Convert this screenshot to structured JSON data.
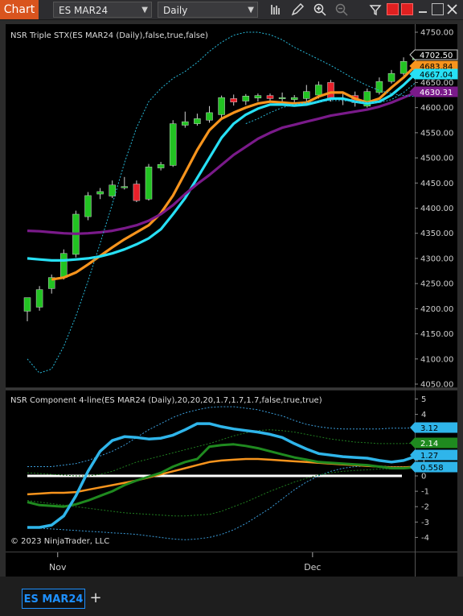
{
  "toolbar": {
    "chart_label": "Chart",
    "instrument": "ES MAR24",
    "interval": "Daily",
    "icons": [
      "bar-type-icon",
      "pencil-icon",
      "zoom-in-icon",
      "zoom-out-icon",
      "properties-icon"
    ]
  },
  "tabs": {
    "active": "ES MAR24",
    "add_label": "+"
  },
  "copyright": "© 2023 NinjaTrader, LLC",
  "chart_data": [
    {
      "type": "candlestick",
      "indicator_label": "NSR Triple STX(ES MAR24 (Daily),false,true,false)",
      "ylim": [
        4040,
        4760
      ],
      "yticks": [
        4050,
        4100,
        4150,
        4200,
        4250,
        4300,
        4350,
        4400,
        4450,
        4500,
        4550,
        4600,
        4650,
        4700,
        4750
      ],
      "xticks": [
        {
          "label": "Nov",
          "index": 2.5
        },
        {
          "label": "Dec",
          "index": 23.5
        }
      ],
      "candles": [
        {
          "o": 4195,
          "h": 4218,
          "l": 4175,
          "c": 4222
        },
        {
          "o": 4203,
          "h": 4245,
          "l": 4196,
          "c": 4238
        },
        {
          "o": 4240,
          "h": 4268,
          "l": 4230,
          "c": 4262
        },
        {
          "o": 4262,
          "h": 4318,
          "l": 4258,
          "c": 4310
        },
        {
          "o": 4308,
          "h": 4395,
          "l": 4302,
          "c": 4388
        },
        {
          "o": 4383,
          "h": 4432,
          "l": 4376,
          "c": 4425
        },
        {
          "o": 4428,
          "h": 4440,
          "l": 4418,
          "c": 4433
        },
        {
          "o": 4424,
          "h": 4455,
          "l": 4420,
          "c": 4446
        },
        {
          "o": 4441,
          "h": 4462,
          "l": 4437,
          "c": 4443
        },
        {
          "o": 4448,
          "h": 4455,
          "l": 4412,
          "c": 4415
        },
        {
          "o": 4418,
          "h": 4488,
          "l": 4415,
          "c": 4482
        },
        {
          "o": 4480,
          "h": 4492,
          "l": 4475,
          "c": 4487
        },
        {
          "o": 4485,
          "h": 4575,
          "l": 4482,
          "c": 4568
        },
        {
          "o": 4565,
          "h": 4592,
          "l": 4560,
          "c": 4572
        },
        {
          "o": 4568,
          "h": 4588,
          "l": 4564,
          "c": 4578
        },
        {
          "o": 4575,
          "h": 4603,
          "l": 4570,
          "c": 4590
        },
        {
          "o": 4586,
          "h": 4624,
          "l": 4580,
          "c": 4620
        },
        {
          "o": 4618,
          "h": 4626,
          "l": 4604,
          "c": 4611
        },
        {
          "o": 4613,
          "h": 4627,
          "l": 4605,
          "c": 4623
        },
        {
          "o": 4619,
          "h": 4628,
          "l": 4612,
          "c": 4624
        },
        {
          "o": 4624,
          "h": 4628,
          "l": 4612,
          "c": 4618
        },
        {
          "o": 4618,
          "h": 4630,
          "l": 4608,
          "c": 4620
        },
        {
          "o": 4616,
          "h": 4625,
          "l": 4608,
          "c": 4620
        },
        {
          "o": 4618,
          "h": 4645,
          "l": 4605,
          "c": 4632
        },
        {
          "o": 4625,
          "h": 4652,
          "l": 4618,
          "c": 4645
        },
        {
          "o": 4650,
          "h": 4655,
          "l": 4612,
          "c": 4616
        },
        {
          "o": 4617,
          "h": 4630,
          "l": 4605,
          "c": 4618
        },
        {
          "o": 4624,
          "h": 4632,
          "l": 4602,
          "c": 4610
        },
        {
          "o": 4603,
          "h": 4638,
          "l": 4600,
          "c": 4632
        },
        {
          "o": 4630,
          "h": 4660,
          "l": 4626,
          "c": 4652
        },
        {
          "o": 4652,
          "h": 4675,
          "l": 4648,
          "c": 4668
        },
        {
          "o": 4668,
          "h": 4700,
          "l": 4664,
          "c": 4692
        },
        {
          "o": 4695,
          "h": 4708,
          "l": 4690,
          "c": 4702
        }
      ],
      "series": [
        {
          "color": "#f7941d",
          "values": [
            null,
            null,
            4258,
            4262,
            4272,
            4288,
            4305,
            4322,
            4338,
            4352,
            4366,
            4390,
            4425,
            4470,
            4516,
            4555,
            4578,
            4590,
            4600,
            4608,
            4612,
            4610,
            4608,
            4610,
            4622,
            4630,
            4630,
            4618,
            4610,
            4618,
            4640,
            4660,
            4684
          ]
        },
        {
          "color": "#27e0f5",
          "values": [
            4300,
            4298,
            4296,
            4296,
            4298,
            4300,
            4304,
            4310,
            4318,
            4328,
            4340,
            4358,
            4388,
            4420,
            4460,
            4500,
            4540,
            4568,
            4586,
            4598,
            4606,
            4606,
            4604,
            4606,
            4612,
            4618,
            4618,
            4612,
            4608,
            4612,
            4625,
            4645,
            4668
          ]
        },
        {
          "color": "#7a1a8a",
          "values": [
            4355,
            4354,
            4352,
            4350,
            4349,
            4350,
            4352,
            4355,
            4360,
            4366,
            4375,
            4388,
            4406,
            4428,
            4448,
            4466,
            4486,
            4506,
            4522,
            4538,
            4550,
            4560,
            4566,
            4572,
            4578,
            4584,
            4588,
            4592,
            4596,
            4602,
            4610,
            4620,
            4630
          ]
        },
        {
          "color": "#27b8d8",
          "dashed": true,
          "values": [
            4100,
            4072,
            4080,
            4125,
            4185,
            4255,
            4330,
            4408,
            4490,
            4560,
            4612,
            4638,
            4658,
            4672,
            4690,
            4712,
            4730,
            4744,
            4750,
            4750,
            4745,
            4735,
            4720,
            4708,
            4696,
            4684,
            4670,
            4656,
            4644,
            4634,
            4628,
            4624,
            4622
          ]
        },
        {
          "color": "#27b8d8",
          "dashed": true,
          "values": [
            null,
            null,
            null,
            null,
            null,
            null,
            null,
            null,
            null,
            null,
            null,
            null,
            null,
            null,
            null,
            null,
            null,
            null,
            4568,
            4578,
            4590,
            4600,
            4606,
            4610,
            4612,
            4614,
            4614,
            4612,
            4610,
            4610,
            4616,
            4630,
            4650
          ]
        }
      ],
      "price_flags": [
        {
          "value": "4702.50",
          "bg": "#000000",
          "fg": "#ffffff"
        },
        {
          "value": "4683.84",
          "bg": "#f7941d",
          "fg": "#000000"
        },
        {
          "value": "4667.04",
          "bg": "#27e0f5",
          "fg": "#000000"
        },
        {
          "value": "4630.31",
          "bg": "#7a1a8a",
          "fg": "#ffffff"
        }
      ]
    },
    {
      "type": "line",
      "indicator_label": "NSR Component 4-line(ES MAR24 (Daily),20,20,20,1.7,1.7,1.7,false,true,true)",
      "ylim": [
        -4.5,
        5.2
      ],
      "yticks": [
        5,
        4,
        3,
        2,
        1,
        0,
        -1,
        -2,
        -3,
        -4
      ],
      "zero_line": 0,
      "series": [
        {
          "color": "#2fb5ea",
          "width": 3.5,
          "values": [
            -3.35,
            -3.35,
            -3.2,
            -2.6,
            -1.3,
            0.3,
            1.6,
            2.3,
            2.55,
            2.5,
            2.4,
            2.45,
            2.65,
            3.0,
            3.4,
            3.4,
            3.2,
            3.05,
            2.95,
            2.85,
            2.7,
            2.5,
            2.1,
            1.75,
            1.45,
            1.35,
            1.25,
            1.2,
            1.15,
            1.0,
            0.9,
            1.0,
            1.27
          ]
        },
        {
          "color": "#1f8a1f",
          "width": 3,
          "values": [
            -1.7,
            -1.9,
            -1.95,
            -2.0,
            -1.85,
            -1.6,
            -1.3,
            -1.0,
            -0.6,
            -0.3,
            -0.05,
            0.2,
            0.6,
            0.9,
            1.1,
            1.9,
            2.0,
            2.05,
            1.95,
            1.8,
            1.6,
            1.4,
            1.2,
            1.05,
            0.9,
            0.85,
            0.8,
            0.75,
            0.7,
            0.6,
            0.5,
            0.5,
            0.56
          ]
        },
        {
          "color": "#f7941d",
          "width": 2.5,
          "values": [
            -1.2,
            -1.15,
            -1.1,
            -1.1,
            -1.05,
            -0.9,
            -0.75,
            -0.6,
            -0.45,
            -0.3,
            -0.1,
            0.1,
            0.3,
            0.5,
            0.7,
            0.9,
            1.0,
            1.05,
            1.1,
            1.1,
            1.05,
            1.0,
            0.95,
            0.9,
            0.85,
            0.8,
            0.75,
            0.7,
            0.65,
            0.6,
            0.55,
            0.55,
            0.6
          ]
        },
        {
          "color": "#3a9bd8",
          "dashed": true,
          "values": [
            0.6,
            0.6,
            0.6,
            0.7,
            0.8,
            1.0,
            1.3,
            1.6,
            2.0,
            2.5,
            3.0,
            3.4,
            3.8,
            4.1,
            4.3,
            4.45,
            4.5,
            4.5,
            4.4,
            4.3,
            4.1,
            3.9,
            3.6,
            3.35,
            3.2,
            3.1,
            3.05,
            3.05,
            3.05,
            3.05,
            3.1,
            3.1,
            3.12
          ]
        },
        {
          "color": "#3a9bd8",
          "dashed": true,
          "values": [
            -3.35,
            -3.4,
            -3.45,
            -3.5,
            -3.55,
            -3.6,
            -3.65,
            -3.7,
            -3.75,
            -3.8,
            -3.9,
            -4.0,
            -4.1,
            -4.15,
            -4.1,
            -4.0,
            -3.8,
            -3.5,
            -3.1,
            -2.6,
            -2.1,
            -1.5,
            -0.9,
            -0.4,
            0.0,
            0.3,
            0.5,
            0.6,
            0.65,
            0.65,
            0.6,
            0.6,
            0.6
          ]
        },
        {
          "color": "#1f7a1f",
          "dashed": true,
          "values": [
            0.2,
            0.15,
            0.1,
            0.05,
            0.0,
            0.0,
            0.1,
            0.3,
            0.6,
            0.9,
            1.1,
            1.3,
            1.5,
            1.7,
            1.9,
            2.1,
            2.35,
            2.6,
            2.8,
            2.95,
            3.0,
            2.95,
            2.85,
            2.7,
            2.55,
            2.4,
            2.3,
            2.2,
            2.15,
            2.1,
            2.1,
            2.1,
            2.14
          ]
        },
        {
          "color": "#1f7a1f",
          "dashed": true,
          "values": [
            -1.6,
            -1.7,
            -1.8,
            -1.9,
            -2.0,
            -2.1,
            -2.2,
            -2.3,
            -2.4,
            -2.45,
            -2.5,
            -2.55,
            -2.6,
            -2.6,
            -2.55,
            -2.5,
            -2.3,
            -2.0,
            -1.7,
            -1.35,
            -1.0,
            -0.7,
            -0.4,
            -0.15,
            0.05,
            0.2,
            0.3,
            0.35,
            0.4,
            0.45,
            0.45,
            0.5,
            0.5
          ]
        }
      ],
      "value_flags": [
        {
          "value": "3.12",
          "bg": "#2fb5ea",
          "fg": "#000000"
        },
        {
          "value": "2.14",
          "bg": "#1f8a1f",
          "fg": "#ffffff"
        },
        {
          "value": "1.27",
          "bg": "#2fb5ea",
          "fg": "#000000"
        },
        {
          "value": "0.558",
          "bg": "#2fb5ea",
          "fg": "#000000"
        }
      ]
    }
  ]
}
